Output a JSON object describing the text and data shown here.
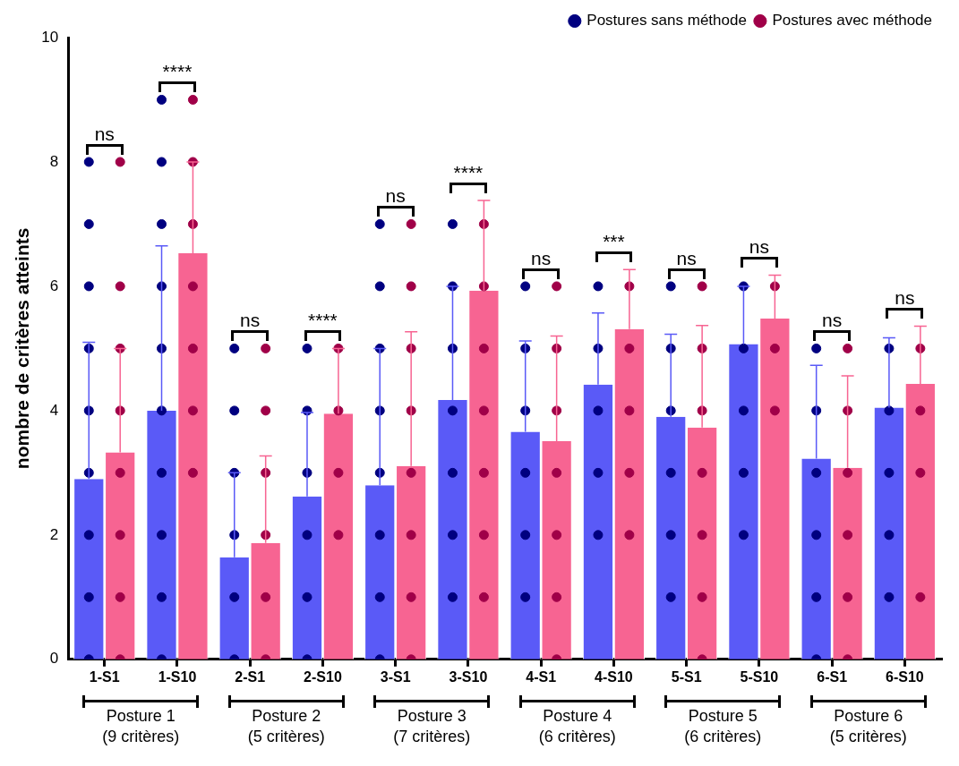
{
  "chart_data": {
    "type": "bar",
    "ylabel": "nombre de critères atteints",
    "categories": [
      "1-S1",
      "1-S10",
      "2-S1",
      "2-S10",
      "3-S1",
      "3-S10",
      "4-S1",
      "4-S10",
      "5-S1",
      "5-S10",
      "6-S1",
      "6-S10"
    ],
    "ylim": [
      0,
      10
    ],
    "yticks": [
      0,
      2,
      4,
      6,
      8,
      10
    ],
    "legend": "top right",
    "marker": "circle",
    "series": [
      {
        "type": "bar",
        "color": "#5a5af7",
        "values": [
          2.9,
          4.0,
          1.64,
          2.62,
          2.8,
          4.17,
          3.66,
          4.42,
          3.9,
          5.07,
          3.23,
          4.05
        ],
        "errors": [
          [
            2.9,
            5.1
          ],
          [
            4.0,
            6.65
          ],
          [
            1.64,
            3.0
          ],
          [
            2.62,
            3.97
          ],
          [
            2.8,
            5.0
          ],
          [
            4.17,
            6.0
          ],
          [
            3.66,
            5.12
          ],
          [
            4.42,
            5.57
          ],
          [
            3.9,
            5.23
          ],
          [
            5.07,
            6.0
          ],
          [
            3.23,
            4.73
          ],
          [
            4.05,
            5.17
          ]
        ]
      },
      {
        "type": "bar",
        "color": "#f76492",
        "values": [
          3.33,
          6.53,
          1.87,
          3.95,
          3.11,
          5.93,
          3.51,
          5.31,
          3.73,
          5.48,
          3.08,
          4.43
        ],
        "errors": [
          [
            3.33,
            5.0
          ],
          [
            6.53,
            8.0
          ],
          [
            1.87,
            3.27
          ],
          [
            3.95,
            5.0
          ],
          [
            3.11,
            5.27
          ],
          [
            5.93,
            7.38
          ],
          [
            3.51,
            5.2
          ],
          [
            5.31,
            6.27
          ],
          [
            3.73,
            5.37
          ],
          [
            5.48,
            6.18
          ],
          [
            3.08,
            4.56
          ],
          [
            4.43,
            5.36
          ]
        ]
      },
      {
        "type": "scatter",
        "name": "Postures sans méthode",
        "color": "#000080",
        "x": [
          "1-S1",
          "1-S1",
          "1-S1",
          "1-S1",
          "1-S1",
          "1-S1",
          "1-S1",
          "1-S1",
          "1-S1",
          "1-S10",
          "1-S10",
          "1-S10",
          "1-S10",
          "1-S10",
          "1-S10",
          "1-S10",
          "1-S10",
          "1-S10",
          "1-S10",
          "2-S1",
          "2-S1",
          "2-S1",
          "2-S1",
          "2-S1",
          "2-S1",
          "2-S10",
          "2-S10",
          "2-S10",
          "2-S10",
          "2-S10",
          "2-S10",
          "3-S1",
          "3-S1",
          "3-S1",
          "3-S1",
          "3-S1",
          "3-S1",
          "3-S1",
          "3-S1",
          "3-S10",
          "3-S10",
          "3-S10",
          "3-S10",
          "3-S10",
          "3-S10",
          "3-S10",
          "4-S1",
          "4-S1",
          "4-S1",
          "4-S1",
          "4-S1",
          "4-S1",
          "4-S10",
          "4-S10",
          "4-S10",
          "4-S10",
          "4-S10",
          "5-S1",
          "5-S1",
          "5-S1",
          "5-S1",
          "5-S1",
          "5-S1",
          "5-S10",
          "5-S10",
          "5-S10",
          "5-S10",
          "5-S10",
          "6-S1",
          "6-S1",
          "6-S1",
          "6-S1",
          "6-S1",
          "6-S1",
          "6-S10",
          "6-S10",
          "6-S10",
          "6-S10",
          "6-S10"
        ],
        "values": [
          8,
          7,
          6,
          5,
          4,
          3,
          2,
          1,
          0,
          9,
          8,
          7,
          6,
          5,
          4,
          3,
          2,
          1,
          0,
          5,
          4,
          3,
          2,
          1,
          0,
          5,
          4,
          3,
          2,
          1,
          0,
          7,
          6,
          5,
          4,
          3,
          2,
          1,
          0,
          7,
          6,
          5,
          4,
          3,
          2,
          1,
          6,
          5,
          4,
          3,
          2,
          1,
          6,
          5,
          4,
          3,
          2,
          6,
          5,
          4,
          3,
          2,
          1,
          6,
          5,
          4,
          3,
          2,
          5,
          4,
          3,
          2,
          1,
          0,
          5,
          4,
          3,
          2,
          1
        ]
      },
      {
        "type": "scatter",
        "name": "Postures avec méthode",
        "color": "#a00048",
        "x": [
          "1-S1",
          "1-S1",
          "1-S1",
          "1-S1",
          "1-S1",
          "1-S1",
          "1-S1",
          "1-S1",
          "1-S10",
          "1-S10",
          "1-S10",
          "1-S10",
          "1-S10",
          "1-S10",
          "1-S10",
          "2-S1",
          "2-S1",
          "2-S1",
          "2-S1",
          "2-S1",
          "2-S1",
          "2-S10",
          "2-S10",
          "2-S10",
          "2-S10",
          "3-S1",
          "3-S1",
          "3-S1",
          "3-S1",
          "3-S1",
          "3-S1",
          "3-S1",
          "3-S1",
          "3-S10",
          "3-S10",
          "3-S10",
          "3-S10",
          "3-S10",
          "3-S10",
          "3-S10",
          "4-S1",
          "4-S1",
          "4-S1",
          "4-S1",
          "4-S1",
          "4-S1",
          "4-S1",
          "4-S10",
          "4-S10",
          "4-S10",
          "4-S10",
          "4-S10",
          "5-S1",
          "5-S1",
          "5-S1",
          "5-S1",
          "5-S1",
          "5-S1",
          "5-S1",
          "5-S10",
          "5-S10",
          "5-S10",
          "6-S1",
          "6-S1",
          "6-S1",
          "6-S1",
          "6-S1",
          "6-S1",
          "6-S10",
          "6-S10",
          "6-S10",
          "6-S10"
        ],
        "values": [
          8,
          6,
          5,
          4,
          3,
          2,
          1,
          0,
          9,
          8,
          7,
          6,
          5,
          4,
          3,
          5,
          4,
          3,
          2,
          1,
          0,
          5,
          4,
          3,
          2,
          7,
          6,
          5,
          4,
          3,
          2,
          1,
          0,
          7,
          6,
          5,
          4,
          3,
          2,
          1,
          6,
          5,
          4,
          3,
          2,
          1,
          0,
          6,
          5,
          4,
          3,
          2,
          6,
          5,
          4,
          3,
          2,
          1,
          0,
          6,
          5,
          4,
          5,
          4,
          3,
          2,
          1,
          0,
          5,
          4,
          3,
          1
        ]
      }
    ],
    "annotations": [
      "ns",
      "****",
      "ns",
      "****",
      "ns",
      "****",
      "ns",
      "***",
      "ns",
      "ns",
      "ns",
      "ns",
      "Posture 1\n(9 critères)",
      "Posture 2\n(5 critères)",
      "Posture 3\n(7 critères)",
      "Posture 4\n(6 critères)",
      "Posture 5\n(6 critères)",
      "Posture 6\n(5 critères)"
    ]
  }
}
